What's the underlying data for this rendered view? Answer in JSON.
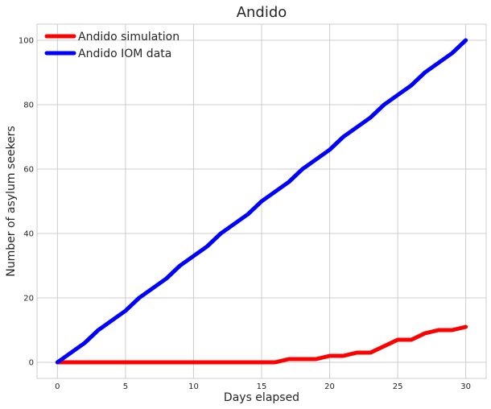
{
  "chart_data": {
    "type": "line",
    "title": "Andido",
    "xlabel": "Days elapsed",
    "ylabel": "Number of asylum seekers",
    "xlim": [
      -1.5,
      31.5
    ],
    "ylim": [
      -5,
      105
    ],
    "xticks": [
      0,
      5,
      10,
      15,
      20,
      25,
      30
    ],
    "yticks": [
      0,
      20,
      40,
      60,
      80,
      100
    ],
    "grid": true,
    "legend_position": "top-left",
    "x": [
      0,
      1,
      2,
      3,
      4,
      5,
      6,
      7,
      8,
      9,
      10,
      11,
      12,
      13,
      14,
      15,
      16,
      17,
      18,
      19,
      20,
      21,
      22,
      23,
      24,
      25,
      26,
      27,
      28,
      29,
      30
    ],
    "series": [
      {
        "name": "Andido simulation",
        "color": "#ff0000",
        "values": [
          0,
          0,
          0,
          0,
          0,
          0,
          0,
          0,
          0,
          0,
          0,
          0,
          0,
          0,
          0,
          0,
          0,
          1,
          1,
          1,
          2,
          2,
          3,
          3,
          5,
          7,
          7,
          9,
          10,
          10,
          11
        ]
      },
      {
        "name": "Andido IOM data",
        "color": "#0000ff",
        "values": [
          0,
          3,
          6,
          10,
          13,
          16,
          20,
          23,
          26,
          30,
          33,
          36,
          40,
          43,
          46,
          50,
          53,
          56,
          60,
          63,
          66,
          70,
          73,
          76,
          80,
          83,
          86,
          90,
          93,
          96,
          100
        ]
      }
    ]
  }
}
